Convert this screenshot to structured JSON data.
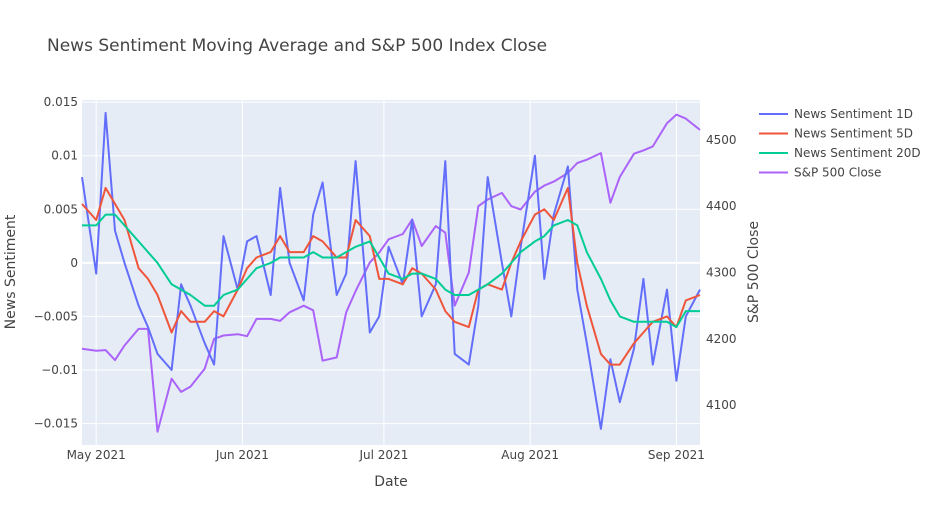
{
  "chart_data": {
    "type": "line",
    "title": "News Sentiment Moving Average and S&P 500 Index Close",
    "xlabel": "Date",
    "ylabel": "News Sentiment",
    "y2label": "S&P 500 Close",
    "x_start": "2021-04-28",
    "x_end": "2021-09-06",
    "xticks": [
      {
        "label": "May 2021",
        "date": "2021-05-01"
      },
      {
        "label": "Jun 2021",
        "date": "2021-06-01"
      },
      {
        "label": "Jul 2021",
        "date": "2021-07-01"
      },
      {
        "label": "Aug 2021",
        "date": "2021-08-01"
      },
      {
        "label": "Sep 2021",
        "date": "2021-09-01"
      }
    ],
    "ylim": [
      -0.017,
      0.0152
    ],
    "yticks": [
      "0.015",
      "0.01",
      "0.005",
      "0",
      "−0.005",
      "−0.01",
      "−0.015"
    ],
    "ytick_values": [
      0.015,
      0.01,
      0.005,
      0,
      -0.005,
      -0.01,
      -0.015
    ],
    "y2lim": [
      4040,
      4560
    ],
    "y2ticks": [
      "4100",
      "4200",
      "4300",
      "4400",
      "4500"
    ],
    "y2tick_values": [
      4100,
      4200,
      4300,
      4400,
      4500
    ],
    "grid": true,
    "legend_position": "right",
    "series": [
      {
        "name": "News Sentiment 1D",
        "axis": "y",
        "color": "#636efa",
        "x": [
          "2021-04-28",
          "2021-05-01",
          "2021-05-03",
          "2021-05-05",
          "2021-05-07",
          "2021-05-10",
          "2021-05-12",
          "2021-05-14",
          "2021-05-17",
          "2021-05-19",
          "2021-05-21",
          "2021-05-24",
          "2021-05-26",
          "2021-05-28",
          "2021-05-31",
          "2021-06-02",
          "2021-06-04",
          "2021-06-07",
          "2021-06-09",
          "2021-06-11",
          "2021-06-14",
          "2021-06-16",
          "2021-06-18",
          "2021-06-21",
          "2021-06-23",
          "2021-06-25",
          "2021-06-28",
          "2021-06-30",
          "2021-07-02",
          "2021-07-05",
          "2021-07-07",
          "2021-07-09",
          "2021-07-12",
          "2021-07-14",
          "2021-07-16",
          "2021-07-19",
          "2021-07-21",
          "2021-07-23",
          "2021-07-26",
          "2021-07-28",
          "2021-07-30",
          "2021-08-02",
          "2021-08-04",
          "2021-08-06",
          "2021-08-09",
          "2021-08-11",
          "2021-08-13",
          "2021-08-16",
          "2021-08-18",
          "2021-08-20",
          "2021-08-23",
          "2021-08-25",
          "2021-08-27",
          "2021-08-30",
          "2021-09-01",
          "2021-09-03",
          "2021-09-06"
        ],
        "y": [
          0.008,
          -0.001,
          0.014,
          0.003,
          0.0,
          -0.004,
          -0.006,
          -0.0085,
          -0.01,
          -0.002,
          -0.004,
          -0.0075,
          -0.0095,
          0.0025,
          -0.0025,
          0.002,
          0.0025,
          -0.003,
          0.007,
          0.0,
          -0.0035,
          0.0045,
          0.0075,
          -0.003,
          -0.001,
          0.0095,
          -0.0065,
          -0.005,
          0.0015,
          -0.002,
          0.004,
          -0.005,
          -0.002,
          0.0095,
          -0.0085,
          -0.0095,
          -0.004,
          0.008,
          0.0,
          -0.005,
          0.0015,
          0.01,
          -0.0015,
          0.0045,
          0.009,
          -0.0025,
          -0.0075,
          -0.0155,
          -0.009,
          -0.013,
          -0.008,
          -0.0015,
          -0.0095,
          -0.0025,
          -0.011,
          -0.005,
          -0.0025
        ]
      },
      {
        "name": "News Sentiment 5D",
        "axis": "y",
        "color": "#ef553b",
        "x": [
          "2021-04-28",
          "2021-05-01",
          "2021-05-03",
          "2021-05-05",
          "2021-05-07",
          "2021-05-10",
          "2021-05-12",
          "2021-05-14",
          "2021-05-17",
          "2021-05-19",
          "2021-05-21",
          "2021-05-24",
          "2021-05-26",
          "2021-05-28",
          "2021-05-31",
          "2021-06-02",
          "2021-06-04",
          "2021-06-07",
          "2021-06-09",
          "2021-06-11",
          "2021-06-14",
          "2021-06-16",
          "2021-06-18",
          "2021-06-21",
          "2021-06-23",
          "2021-06-25",
          "2021-06-28",
          "2021-06-30",
          "2021-07-02",
          "2021-07-05",
          "2021-07-07",
          "2021-07-09",
          "2021-07-12",
          "2021-07-14",
          "2021-07-16",
          "2021-07-19",
          "2021-07-21",
          "2021-07-23",
          "2021-07-26",
          "2021-07-28",
          "2021-07-30",
          "2021-08-02",
          "2021-08-04",
          "2021-08-06",
          "2021-08-09",
          "2021-08-11",
          "2021-08-13",
          "2021-08-16",
          "2021-08-18",
          "2021-08-20",
          "2021-08-23",
          "2021-08-25",
          "2021-08-27",
          "2021-08-30",
          "2021-09-01",
          "2021-09-03",
          "2021-09-06"
        ],
        "y": [
          0.0055,
          0.004,
          0.007,
          0.0055,
          0.004,
          -0.0005,
          -0.0015,
          -0.003,
          -0.0065,
          -0.0045,
          -0.0055,
          -0.0055,
          -0.0045,
          -0.005,
          -0.0025,
          -0.0005,
          0.0005,
          0.001,
          0.0025,
          0.001,
          0.001,
          0.0025,
          0.002,
          0.0005,
          0.0005,
          0.004,
          0.0025,
          -0.0015,
          -0.0015,
          -0.002,
          -0.0005,
          -0.001,
          -0.0025,
          -0.0045,
          -0.0055,
          -0.006,
          -0.0025,
          -0.002,
          -0.0025,
          0.0,
          0.002,
          0.0045,
          0.005,
          0.004,
          0.007,
          0.0,
          -0.004,
          -0.0085,
          -0.0095,
          -0.0095,
          -0.0075,
          -0.0065,
          -0.0055,
          -0.005,
          -0.006,
          -0.0035,
          -0.003
        ]
      },
      {
        "name": "News Sentiment 20D",
        "axis": "y",
        "color": "#00cc96",
        "x": [
          "2021-04-28",
          "2021-05-01",
          "2021-05-03",
          "2021-05-05",
          "2021-05-07",
          "2021-05-10",
          "2021-05-12",
          "2021-05-14",
          "2021-05-17",
          "2021-05-19",
          "2021-05-21",
          "2021-05-24",
          "2021-05-26",
          "2021-05-28",
          "2021-05-31",
          "2021-06-02",
          "2021-06-04",
          "2021-06-07",
          "2021-06-09",
          "2021-06-11",
          "2021-06-14",
          "2021-06-16",
          "2021-06-18",
          "2021-06-21",
          "2021-06-23",
          "2021-06-25",
          "2021-06-28",
          "2021-06-30",
          "2021-07-02",
          "2021-07-05",
          "2021-07-07",
          "2021-07-09",
          "2021-07-12",
          "2021-07-14",
          "2021-07-16",
          "2021-07-19",
          "2021-07-21",
          "2021-07-23",
          "2021-07-26",
          "2021-07-28",
          "2021-07-30",
          "2021-08-02",
          "2021-08-04",
          "2021-08-06",
          "2021-08-09",
          "2021-08-11",
          "2021-08-13",
          "2021-08-16",
          "2021-08-18",
          "2021-08-20",
          "2021-08-23",
          "2021-08-25",
          "2021-08-27",
          "2021-08-30",
          "2021-09-01",
          "2021-09-03",
          "2021-09-06"
        ],
        "y": [
          0.0035,
          0.0035,
          0.0045,
          0.0045,
          0.0035,
          0.002,
          0.001,
          0.0,
          -0.002,
          -0.0025,
          -0.003,
          -0.004,
          -0.004,
          -0.003,
          -0.0025,
          -0.0015,
          -0.0005,
          0.0,
          0.0005,
          0.0005,
          0.0005,
          0.001,
          0.0005,
          0.0005,
          0.001,
          0.0015,
          0.002,
          0.0005,
          -0.001,
          -0.0015,
          -0.001,
          -0.001,
          -0.0015,
          -0.0025,
          -0.003,
          -0.003,
          -0.0025,
          -0.002,
          -0.001,
          0.0,
          0.001,
          0.002,
          0.0025,
          0.0035,
          0.004,
          0.0035,
          0.001,
          -0.0015,
          -0.0035,
          -0.005,
          -0.0055,
          -0.0055,
          -0.0055,
          -0.0055,
          -0.006,
          -0.0045,
          -0.0045
        ]
      },
      {
        "name": "S&P 500 Close",
        "axis": "y2",
        "color": "#ab63fa",
        "x": [
          "2021-04-28",
          "2021-05-01",
          "2021-05-03",
          "2021-05-05",
          "2021-05-07",
          "2021-05-10",
          "2021-05-12",
          "2021-05-14",
          "2021-05-17",
          "2021-05-19",
          "2021-05-21",
          "2021-05-24",
          "2021-05-26",
          "2021-05-28",
          "2021-05-31",
          "2021-06-02",
          "2021-06-04",
          "2021-06-07",
          "2021-06-09",
          "2021-06-11",
          "2021-06-14",
          "2021-06-16",
          "2021-06-18",
          "2021-06-21",
          "2021-06-23",
          "2021-06-25",
          "2021-06-28",
          "2021-06-30",
          "2021-07-02",
          "2021-07-05",
          "2021-07-07",
          "2021-07-09",
          "2021-07-12",
          "2021-07-14",
          "2021-07-16",
          "2021-07-19",
          "2021-07-21",
          "2021-07-23",
          "2021-07-26",
          "2021-07-28",
          "2021-07-30",
          "2021-08-02",
          "2021-08-04",
          "2021-08-06",
          "2021-08-09",
          "2021-08-11",
          "2021-08-13",
          "2021-08-16",
          "2021-08-18",
          "2021-08-20",
          "2021-08-23",
          "2021-08-25",
          "2021-08-27",
          "2021-08-30",
          "2021-09-01",
          "2021-09-03",
          "2021-09-06"
        ],
        "y": [
          4185,
          4182,
          4183,
          4168,
          4190,
          4215,
          4215,
          4060,
          4140,
          4120,
          4128,
          4155,
          4200,
          4205,
          4207,
          4204,
          4230,
          4230,
          4227,
          4240,
          4250,
          4243,
          4167,
          4172,
          4240,
          4272,
          4315,
          4330,
          4350,
          4358,
          4380,
          4340,
          4370,
          4360,
          4250,
          4300,
          4400,
          4410,
          4420,
          4400,
          4395,
          4422,
          4431,
          4437,
          4450,
          4465,
          4470,
          4480,
          4405,
          4444,
          4479,
          4484,
          4490,
          4525,
          4538,
          4532,
          4515
        ]
      }
    ]
  }
}
